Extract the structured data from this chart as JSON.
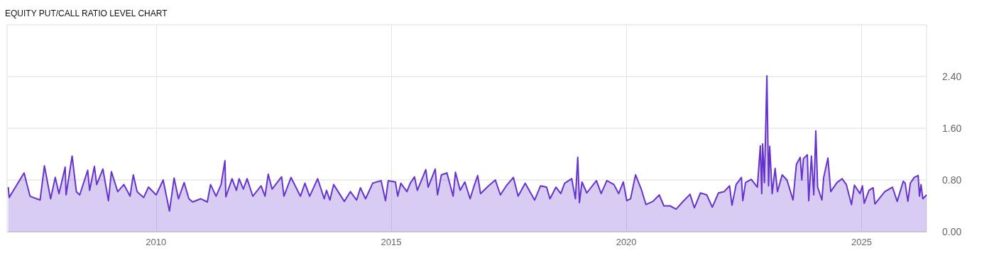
{
  "chart_data": {
    "type": "area",
    "title": "EQUITY PUT/CALL RATIO LEVEL CHART",
    "x": [
      "2006-11-10",
      "2006-11-17",
      "2007-03-13",
      "2007-04-28",
      "2007-07-15",
      "2007-08-18",
      "2007-10-05",
      "2007-11-10",
      "2007-12-09",
      "2008-01-26",
      "2008-02-02",
      "2008-03-20",
      "2008-04-22",
      "2008-05-18",
      "2008-07-19",
      "2008-08-03",
      "2008-09-09",
      "2008-09-27",
      "2008-11-14",
      "2008-12-27",
      "2009-01-19",
      "2009-03-09",
      "2009-04-26",
      "2009-06-13",
      "2009-07-08",
      "2009-08-07",
      "2009-09-27",
      "2009-11-03",
      "2010-01-02",
      "2010-02-25",
      "2010-04-15",
      "2010-05-21",
      "2010-06-24",
      "2010-08-07",
      "2010-09-13",
      "2010-10-12",
      "2010-12-13",
      "2011-02-03",
      "2011-02-28",
      "2011-04-12",
      "2011-05-21",
      "2011-06-20",
      "2011-06-27",
      "2011-08-14",
      "2011-09-17",
      "2011-10-08",
      "2011-11-10",
      "2011-12-09",
      "2012-01-22",
      "2012-03-27",
      "2012-04-26",
      "2012-05-21",
      "2012-06-20",
      "2012-09-02",
      "2012-09-20",
      "2012-11-14",
      "2013-01-26",
      "2013-03-02",
      "2013-04-08",
      "2013-06-09",
      "2013-07-30",
      "2013-08-17",
      "2013-09-12",
      "2013-10-11",
      "2014-01-02",
      "2014-02-18",
      "2014-04-08",
      "2014-05-07",
      "2014-06-16",
      "2014-08-10",
      "2014-10-15",
      "2014-11-18",
      "2014-12-09",
      "2015-02-03",
      "2015-02-21",
      "2015-03-17",
      "2015-05-03",
      "2015-05-29",
      "2015-07-01",
      "2015-07-23",
      "2015-09-27",
      "2015-10-15",
      "2015-11-14",
      "2015-12-09",
      "2015-12-27",
      "2016-01-26",
      "2016-03-09",
      "2016-04-26",
      "2016-05-14",
      "2016-06-20",
      "2016-07-26",
      "2016-09-05",
      "2016-10-01",
      "2016-11-03",
      "2016-11-25",
      "2017-01-26",
      "2017-03-20",
      "2017-04-28",
      "2017-06-13",
      "2017-08-07",
      "2017-09-13",
      "2017-11-07",
      "2018-01-19",
      "2018-03-06",
      "2018-04-22",
      "2018-05-18",
      "2018-07-04",
      "2018-08-10",
      "2018-09-09",
      "2018-11-03",
      "2018-12-02",
      "2018-12-20",
      "2019-01-02",
      "2019-01-22",
      "2019-02-28",
      "2019-05-14",
      "2019-06-20",
      "2019-08-03",
      "2019-09-27",
      "2019-11-03",
      "2019-12-09",
      "2020-01-05",
      "2020-02-03",
      "2020-03-13",
      "2020-04-26",
      "2020-06-02",
      "2020-07-26",
      "2020-09-13",
      "2020-10-19",
      "2020-12-06",
      "2021-01-22",
      "2021-03-13",
      "2021-05-10",
      "2021-06-13",
      "2021-07-30",
      "2021-09-17",
      "2021-10-30",
      "2021-12-17",
      "2022-01-30",
      "2022-03-13",
      "2022-04-01",
      "2022-05-03",
      "2022-06-13",
      "2022-06-24",
      "2022-07-15",
      "2022-08-29",
      "2022-10-15",
      "2022-11-07",
      "2022-11-18",
      "2022-11-25",
      "2022-12-09",
      "2022-12-28",
      "2023-01-10",
      "2023-01-19",
      "2023-02-07",
      "2023-03-02",
      "2023-03-20",
      "2023-04-26",
      "2023-06-02",
      "2023-07-19",
      "2023-08-14",
      "2023-09-13",
      "2023-09-25",
      "2023-10-08",
      "2023-11-07",
      "2023-11-18",
      "2023-12-09",
      "2023-12-27",
      "2024-01-12",
      "2024-01-26",
      "2024-02-28",
      "2024-03-13",
      "2024-04-15",
      "2024-05-07",
      "2024-06-24",
      "2024-08-03",
      "2024-09-05",
      "2024-10-15",
      "2024-11-07",
      "2024-12-20",
      "2025-01-08",
      "2025-01-22",
      "2025-02-28",
      "2025-04-01",
      "2025-04-15",
      "2025-06-02",
      "2025-07-01",
      "2025-08-29",
      "2025-10-05",
      "2025-11-21",
      "2025-12-06",
      "2025-12-27",
      "2026-01-15",
      "2026-02-14",
      "2026-03-17",
      "2026-03-27",
      "2026-04-08",
      "2026-04-22",
      "2026-05-21"
    ],
    "series": [
      {
        "color": "#6633cc",
        "values": [
          0.69,
          0.53,
          0.91,
          0.55,
          0.49,
          1.02,
          0.51,
          0.84,
          0.59,
          1.0,
          0.57,
          1.17,
          0.62,
          0.57,
          0.95,
          0.64,
          1.01,
          0.73,
          0.97,
          0.48,
          0.93,
          0.62,
          0.73,
          0.55,
          0.88,
          0.62,
          0.53,
          0.69,
          0.57,
          0.8,
          0.32,
          0.83,
          0.51,
          0.76,
          0.51,
          0.46,
          0.51,
          0.46,
          0.73,
          0.55,
          0.73,
          1.1,
          0.54,
          0.82,
          0.64,
          0.82,
          0.66,
          0.82,
          0.55,
          0.71,
          0.55,
          0.89,
          0.66,
          0.85,
          0.55,
          0.84,
          0.55,
          0.75,
          0.55,
          0.82,
          0.51,
          0.64,
          0.49,
          0.73,
          0.47,
          0.62,
          0.49,
          0.68,
          0.51,
          0.75,
          0.79,
          0.48,
          0.79,
          0.77,
          0.55,
          0.75,
          0.62,
          0.75,
          0.85,
          0.64,
          0.96,
          0.69,
          0.84,
          0.97,
          0.57,
          0.88,
          0.91,
          0.55,
          0.92,
          0.64,
          0.77,
          0.51,
          0.68,
          0.87,
          0.59,
          0.71,
          0.8,
          0.57,
          0.71,
          0.84,
          0.55,
          0.75,
          0.49,
          0.71,
          0.69,
          0.51,
          0.69,
          0.59,
          0.75,
          0.82,
          0.51,
          1.15,
          0.45,
          0.77,
          0.6,
          0.79,
          0.59,
          0.79,
          0.73,
          0.59,
          0.77,
          0.48,
          0.51,
          0.88,
          0.66,
          0.42,
          0.47,
          0.57,
          0.4,
          0.4,
          0.35,
          0.46,
          0.58,
          0.37,
          0.6,
          0.57,
          0.38,
          0.6,
          0.62,
          0.71,
          0.41,
          0.73,
          0.84,
          0.48,
          0.76,
          0.81,
          0.69,
          1.33,
          0.59,
          1.36,
          0.76,
          2.41,
          0.71,
          1.32,
          0.59,
          0.98,
          0.62,
          0.88,
          0.8,
          0.49,
          1.04,
          1.15,
          0.8,
          1.13,
          1.19,
          0.48,
          1.17,
          0.57,
          1.56,
          0.69,
          0.49,
          0.84,
          1.14,
          0.62,
          0.76,
          0.82,
          0.73,
          0.42,
          0.72,
          0.59,
          0.71,
          0.44,
          0.64,
          0.68,
          0.43,
          0.55,
          0.62,
          0.69,
          0.47,
          0.78,
          0.75,
          0.47,
          0.75,
          0.84,
          0.87,
          0.55,
          0.73,
          0.51,
          0.57
        ]
      }
    ],
    "xlim": [
      "2006-11-01",
      "2026-05-21"
    ],
    "xticks": [
      "2010",
      "2015",
      "2020",
      "2025"
    ],
    "ylim": [
      0,
      3.2
    ],
    "yticks": [
      {
        "value": 0,
        "label": "0.00"
      },
      {
        "value": 0.8,
        "label": "0.80"
      },
      {
        "value": 1.6,
        "label": "1.60"
      },
      {
        "value": 2.4,
        "label": "2.40"
      }
    ],
    "grid": true
  }
}
